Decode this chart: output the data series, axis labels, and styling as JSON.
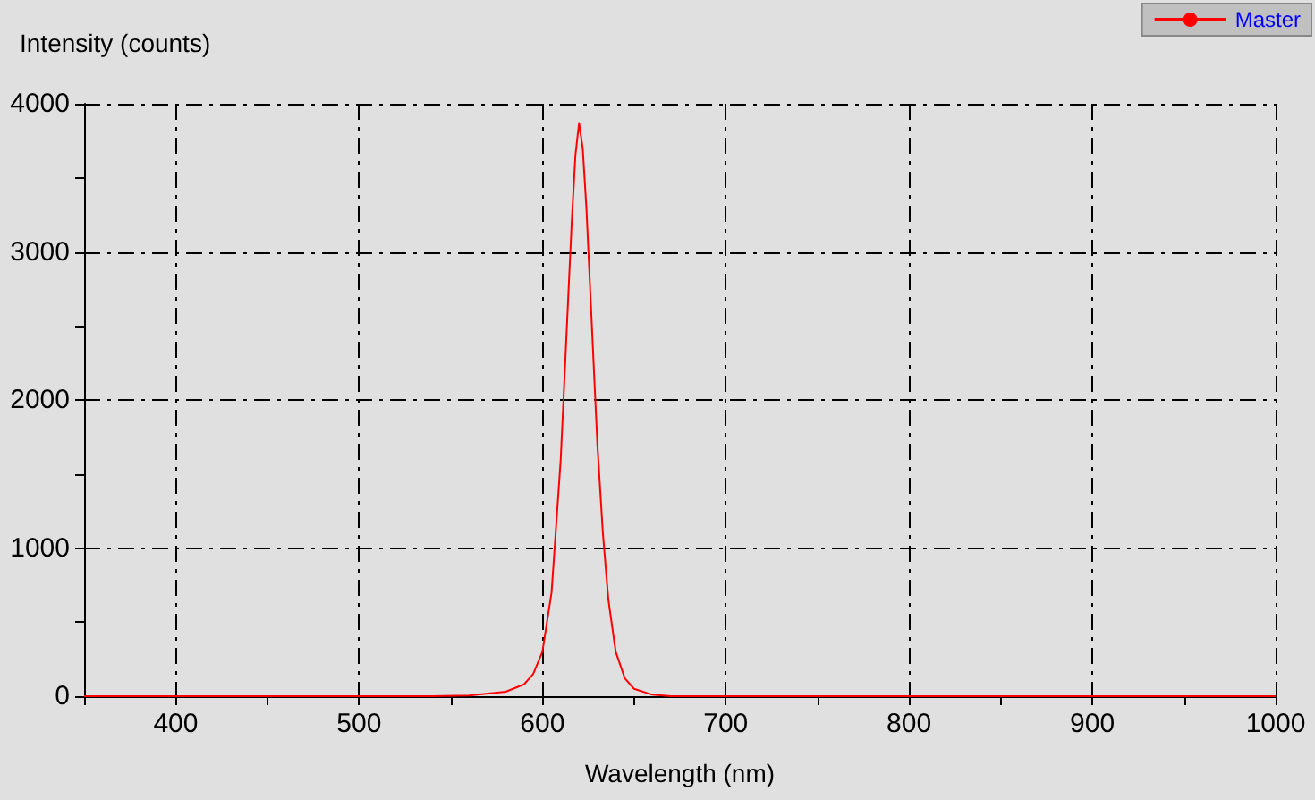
{
  "chart_data": {
    "type": "line",
    "ylabel": "Intensity (counts)",
    "xlabel": "Wavelength (nm)",
    "series": [
      {
        "name": "Master",
        "color": "#ff0000",
        "x": [
          350,
          540,
          560,
          580,
          590,
          595,
          600,
          605,
          610,
          613,
          616,
          618,
          620,
          622,
          624,
          627,
          630,
          633,
          636,
          640,
          645,
          650,
          660,
          670,
          1000
        ],
        "values": [
          0,
          0,
          5,
          30,
          80,
          150,
          300,
          700,
          1600,
          2400,
          3200,
          3650,
          3870,
          3700,
          3300,
          2500,
          1700,
          1100,
          650,
          300,
          120,
          50,
          10,
          0,
          0
        ]
      }
    ],
    "xlim": [
      350,
      1000
    ],
    "xticks": [
      {
        "value": 350,
        "label": null
      },
      400,
      {
        "value": 450,
        "label": null
      },
      500,
      {
        "value": 550,
        "label": null
      },
      600,
      {
        "value": 650,
        "label": null
      },
      700,
      {
        "value": 750,
        "label": null
      },
      800,
      {
        "value": 850,
        "label": null
      },
      900,
      {
        "value": 950,
        "label": null
      },
      1000
    ],
    "ylim": [
      0,
      4000
    ],
    "yticks": [
      0,
      {
        "value": 500,
        "label": null
      },
      1000,
      {
        "value": 1500,
        "label": null
      },
      2000,
      {
        "value": 2500,
        "label": null
      },
      3000,
      {
        "value": 3500,
        "label": null
      },
      4000
    ],
    "grid": true,
    "legend": "top right",
    "marker": "none",
    "line_style": "solid"
  }
}
